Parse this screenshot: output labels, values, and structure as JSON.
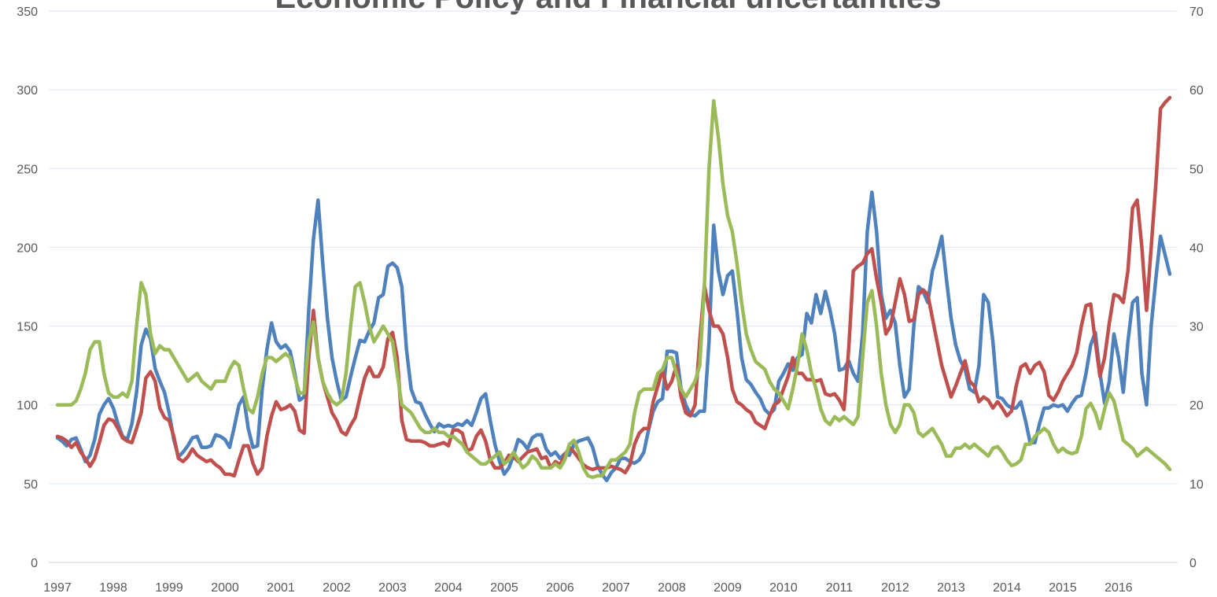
{
  "chart_data": {
    "type": "line",
    "title": "Economic Policy and Financial uncertainties",
    "categories": [
      "1997",
      null,
      null,
      null,
      null,
      null,
      null,
      null,
      null,
      null,
      null,
      null,
      "1998",
      null,
      null,
      null,
      null,
      null,
      null,
      null,
      null,
      null,
      null,
      null,
      "1999",
      null,
      null,
      null,
      null,
      null,
      null,
      null,
      null,
      null,
      null,
      null,
      "2000",
      null,
      null,
      null,
      null,
      null,
      null,
      null,
      null,
      null,
      null,
      null,
      "2001",
      null,
      null,
      null,
      null,
      null,
      null,
      null,
      null,
      null,
      null,
      null,
      "2002",
      null,
      null,
      null,
      null,
      null,
      null,
      null,
      null,
      null,
      null,
      null,
      "2003",
      null,
      null,
      null,
      null,
      null,
      null,
      null,
      null,
      null,
      null,
      null,
      "2004",
      null,
      null,
      null,
      null,
      null,
      null,
      null,
      null,
      null,
      null,
      null,
      "2005",
      null,
      null,
      null,
      null,
      null,
      null,
      null,
      null,
      null,
      null,
      null,
      "2006",
      null,
      null,
      null,
      null,
      null,
      null,
      null,
      null,
      null,
      null,
      null,
      "2007",
      null,
      null,
      null,
      null,
      null,
      null,
      null,
      null,
      null,
      null,
      null,
      "2008",
      null,
      null,
      null,
      null,
      null,
      null,
      null,
      null,
      null,
      null,
      null,
      "2009",
      null,
      null,
      null,
      null,
      null,
      null,
      null,
      null,
      null,
      null,
      null,
      "2010",
      null,
      null,
      null,
      null,
      null,
      null,
      null,
      null,
      null,
      null,
      null,
      "2011",
      null,
      null,
      null,
      null,
      null,
      null,
      null,
      null,
      null,
      null,
      null,
      "2012",
      null,
      null,
      null,
      null,
      null,
      null,
      null,
      null,
      null,
      null,
      null,
      "2013",
      null,
      null,
      null,
      null,
      null,
      null,
      null,
      null,
      null,
      null,
      null,
      "2014",
      null,
      null,
      null,
      null,
      null,
      null,
      null,
      null,
      null,
      null,
      null,
      "2015",
      null,
      null,
      null,
      null,
      null,
      null,
      null,
      null,
      null,
      null,
      null,
      "2016",
      null,
      null,
      null,
      null,
      null,
      null,
      null,
      null,
      null,
      null,
      null
    ],
    "series": [
      {
        "color": "#4f81bd",
        "values": [
          79,
          77,
          74,
          78,
          79,
          72,
          64,
          68,
          78,
          94,
          100,
          104,
          98,
          88,
          80,
          78,
          88,
          108,
          138,
          148,
          142,
          123,
          115,
          108,
          95,
          78,
          67,
          70,
          74,
          79,
          80,
          73,
          73,
          74,
          81,
          80,
          78,
          73,
          86,
          100,
          105,
          85,
          73,
          74,
          110,
          135,
          152,
          140,
          136,
          138,
          134,
          120,
          103,
          105,
          160,
          205,
          230,
          190,
          155,
          130,
          115,
          103,
          105,
          118,
          130,
          141,
          140,
          147,
          152,
          168,
          170,
          188,
          190,
          187,
          175,
          135,
          110,
          102,
          101,
          94,
          88,
          83,
          88,
          86,
          87,
          86,
          88,
          87,
          90,
          87,
          95,
          104,
          107,
          90,
          75,
          64,
          56,
          60,
          68,
          78,
          76,
          72,
          79,
          81,
          81,
          72,
          68,
          70,
          66,
          69,
          68,
          75,
          77,
          78,
          79,
          73,
          62,
          56,
          52,
          57,
          60,
          66,
          66,
          64,
          63,
          65,
          70,
          84,
          96,
          102,
          104,
          134,
          134,
          133,
          110,
          100,
          94,
          93,
          96,
          96,
          140,
          214,
          185,
          170,
          182,
          185,
          160,
          130,
          116,
          113,
          108,
          104,
          97,
          94,
          97,
          115,
          120,
          126,
          122,
          130,
          132,
          158,
          152,
          170,
          158,
          172,
          160,
          145,
          122,
          123,
          128,
          120,
          115,
          145,
          210,
          235,
          210,
          170,
          155,
          160,
          152,
          125,
          105,
          110,
          150,
          175,
          172,
          165,
          185,
          195,
          207,
          180,
          155,
          138,
          128,
          123,
          110,
          108,
          125,
          170,
          165,
          140,
          105,
          104,
          100,
          98,
          98,
          102,
          90,
          76,
          76,
          88,
          98,
          98,
          100,
          99,
          100,
          96,
          101,
          105,
          106,
          120,
          138,
          146,
          120,
          101,
          115,
          145,
          130,
          108,
          140,
          165,
          168,
          120,
          100,
          150,
          180,
          207,
          195,
          183
        ]
      },
      {
        "color": "#c0504d",
        "values": [
          80,
          79,
          77,
          73,
          76,
          70,
          66,
          61,
          66,
          76,
          87,
          91,
          90,
          85,
          79,
          77,
          76,
          85,
          95,
          117,
          121,
          115,
          98,
          92,
          90,
          80,
          66,
          64,
          67,
          72,
          68,
          66,
          64,
          65,
          62,
          60,
          56,
          56,
          55,
          65,
          74,
          74,
          63,
          56,
          60,
          80,
          93,
          102,
          97,
          98,
          100,
          96,
          84,
          82,
          130,
          160,
          130,
          115,
          105,
          95,
          90,
          83,
          81,
          87,
          92,
          105,
          117,
          124,
          118,
          118,
          124,
          142,
          146,
          130,
          90,
          78,
          77,
          77,
          77,
          76,
          74,
          74,
          75,
          76,
          74,
          84,
          84,
          82,
          71,
          72,
          80,
          84,
          77,
          65,
          60,
          60,
          63,
          68,
          67,
          64,
          67,
          70,
          71,
          72,
          66,
          67,
          60,
          64,
          62,
          68,
          73,
          70,
          66,
          62,
          60,
          59,
          60,
          60,
          60,
          61,
          60,
          59,
          57,
          62,
          75,
          82,
          85,
          85,
          102,
          112,
          122,
          110,
          115,
          125,
          105,
          95,
          93,
          100,
          140,
          176,
          160,
          150,
          150,
          145,
          130,
          110,
          102,
          100,
          97,
          95,
          89,
          87,
          85,
          93,
          100,
          102,
          110,
          118,
          130,
          120,
          120,
          116,
          116,
          115,
          116,
          107,
          106,
          107,
          103,
          97,
          135,
          185,
          188,
          190,
          196,
          199,
          180,
          165,
          145,
          150,
          165,
          180,
          170,
          153,
          154,
          170,
          173,
          170,
          155,
          140,
          125,
          115,
          105,
          112,
          120,
          128,
          115,
          112,
          102,
          105,
          103,
          98,
          102,
          98,
          93,
          96,
          112,
          124,
          126,
          120,
          125,
          127,
          121,
          106,
          103,
          108,
          115,
          120,
          125,
          133,
          150,
          163,
          164,
          140,
          118,
          130,
          152,
          170,
          169,
          165,
          185,
          225,
          230,
          200,
          160,
          200,
          240,
          288,
          292,
          295
        ]
      },
      {
        "color": "#9bbb59",
        "axis": "y2",
        "values": [
          20,
          20,
          20,
          20,
          20.5,
          22,
          24,
          27,
          28,
          28,
          24,
          21.5,
          21,
          21,
          21.5,
          21,
          23,
          30,
          35.5,
          34,
          29,
          26.5,
          27.5,
          27,
          27,
          26,
          25,
          24,
          23,
          23.5,
          24,
          23,
          22.5,
          22,
          23,
          23,
          23,
          24.5,
          25.5,
          25,
          22,
          19.5,
          19,
          21,
          24,
          26,
          26,
          25.5,
          26,
          26.5,
          26,
          23.5,
          21.5,
          21.5,
          28,
          30.5,
          26,
          23,
          21.5,
          20.5,
          20,
          20.5,
          24,
          30,
          35,
          35.5,
          33,
          30,
          28,
          29,
          30,
          29,
          28,
          24,
          20,
          19.5,
          19,
          18,
          17,
          16.5,
          16.5,
          17,
          16.5,
          16.5,
          16,
          16,
          15.5,
          15,
          14,
          13.5,
          13,
          12.5,
          12.5,
          13,
          13.5,
          14,
          12.5,
          13,
          14,
          13,
          12,
          12.5,
          13.5,
          13,
          12,
          12,
          12,
          12.5,
          12,
          13,
          15,
          15.5,
          14,
          12,
          11,
          10.8,
          11,
          11,
          12,
          13,
          13,
          13.5,
          14,
          15,
          19,
          21.5,
          22,
          22,
          22,
          24,
          24.5,
          26,
          26,
          24,
          22,
          21,
          22,
          23,
          25,
          35,
          50,
          58.6,
          54,
          48,
          44,
          42,
          38,
          33,
          29,
          27,
          25.5,
          25,
          24.5,
          23,
          22,
          21.5,
          20.5,
          19.5,
          22,
          25,
          29,
          27,
          24,
          22,
          19.5,
          18,
          17.5,
          18.5,
          18,
          18.5,
          18,
          17.5,
          18.5,
          26,
          33,
          34.5,
          30,
          24,
          20,
          17.5,
          16.5,
          17.5,
          20,
          20,
          19,
          16.5,
          16,
          16.5,
          17,
          16,
          15,
          13.5,
          13.5,
          14.5,
          14.5,
          15,
          14.5,
          15,
          14.5,
          14,
          13.5,
          14.5,
          14.7,
          14,
          13,
          12.3,
          12.5,
          13,
          15,
          15,
          16,
          16.5,
          17,
          16.5,
          15,
          14,
          14.5,
          14,
          13.8,
          14,
          16,
          19.5,
          20.2,
          19,
          17,
          19.5,
          21.5,
          20.5,
          18,
          15.5,
          15,
          14.5,
          13.5,
          14,
          14.5,
          14,
          13.5,
          13,
          12.5,
          11.8
        ]
      }
    ],
    "ylim": [
      0,
      350
    ],
    "yticks": [
      0,
      50,
      100,
      150,
      200,
      250,
      300,
      350
    ],
    "y2lim": [
      0,
      70
    ],
    "y2ticks": [
      0,
      10,
      20,
      30,
      40,
      50,
      60,
      70
    ],
    "grid": true
  }
}
